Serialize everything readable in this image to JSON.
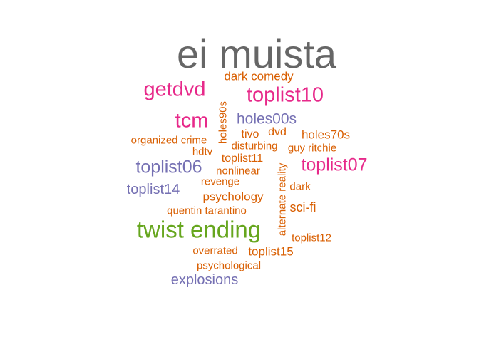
{
  "palette": {
    "gray": "#666666",
    "orange": "#D95F02",
    "magenta": "#E7298A",
    "purple": "#7570B3",
    "green": "#66A61E"
  },
  "words": [
    {
      "id": "ei-muista",
      "text": "ei muista",
      "color": "gray"
    },
    {
      "id": "dark-comedy",
      "text": "dark comedy",
      "color": "orange"
    },
    {
      "id": "getdvd",
      "text": "getdvd",
      "color": "magenta"
    },
    {
      "id": "toplist10",
      "text": "toplist10",
      "color": "magenta"
    },
    {
      "id": "holes90s",
      "text": "holes90s",
      "color": "orange"
    },
    {
      "id": "tcm",
      "text": "tcm",
      "color": "magenta"
    },
    {
      "id": "holes00s",
      "text": "holes00s",
      "color": "purple"
    },
    {
      "id": "tivo",
      "text": "tivo",
      "color": "orange"
    },
    {
      "id": "dvd",
      "text": "dvd",
      "color": "orange"
    },
    {
      "id": "holes70s",
      "text": "holes70s",
      "color": "orange"
    },
    {
      "id": "organized-crime",
      "text": "organized crime",
      "color": "orange"
    },
    {
      "id": "disturbing",
      "text": "disturbing",
      "color": "orange"
    },
    {
      "id": "guy-ritchie",
      "text": "guy ritchie",
      "color": "orange"
    },
    {
      "id": "hdtv",
      "text": "hdtv",
      "color": "orange"
    },
    {
      "id": "toplist11",
      "text": "toplist11",
      "color": "orange"
    },
    {
      "id": "toplist06",
      "text": "toplist06",
      "color": "purple"
    },
    {
      "id": "toplist07",
      "text": "toplist07",
      "color": "magenta"
    },
    {
      "id": "nonlinear",
      "text": "nonlinear",
      "color": "orange"
    },
    {
      "id": "alternate-reality",
      "text": "alternate reality",
      "color": "orange"
    },
    {
      "id": "revenge",
      "text": "revenge",
      "color": "orange"
    },
    {
      "id": "dark",
      "text": "dark",
      "color": "orange"
    },
    {
      "id": "toplist14",
      "text": "toplist14",
      "color": "purple"
    },
    {
      "id": "psychology",
      "text": "psychology",
      "color": "orange"
    },
    {
      "id": "sci-fi",
      "text": "sci-fi",
      "color": "orange"
    },
    {
      "id": "quentin-tarantino",
      "text": "quentin tarantino",
      "color": "orange"
    },
    {
      "id": "twist-ending",
      "text": "twist ending",
      "color": "green"
    },
    {
      "id": "toplist12",
      "text": "toplist12",
      "color": "orange"
    },
    {
      "id": "overrated",
      "text": "overrated",
      "color": "orange"
    },
    {
      "id": "toplist15",
      "text": "toplist15",
      "color": "orange"
    },
    {
      "id": "psychological",
      "text": "psychological",
      "color": "orange"
    },
    {
      "id": "explosions",
      "text": "explosions",
      "color": "purple"
    }
  ]
}
